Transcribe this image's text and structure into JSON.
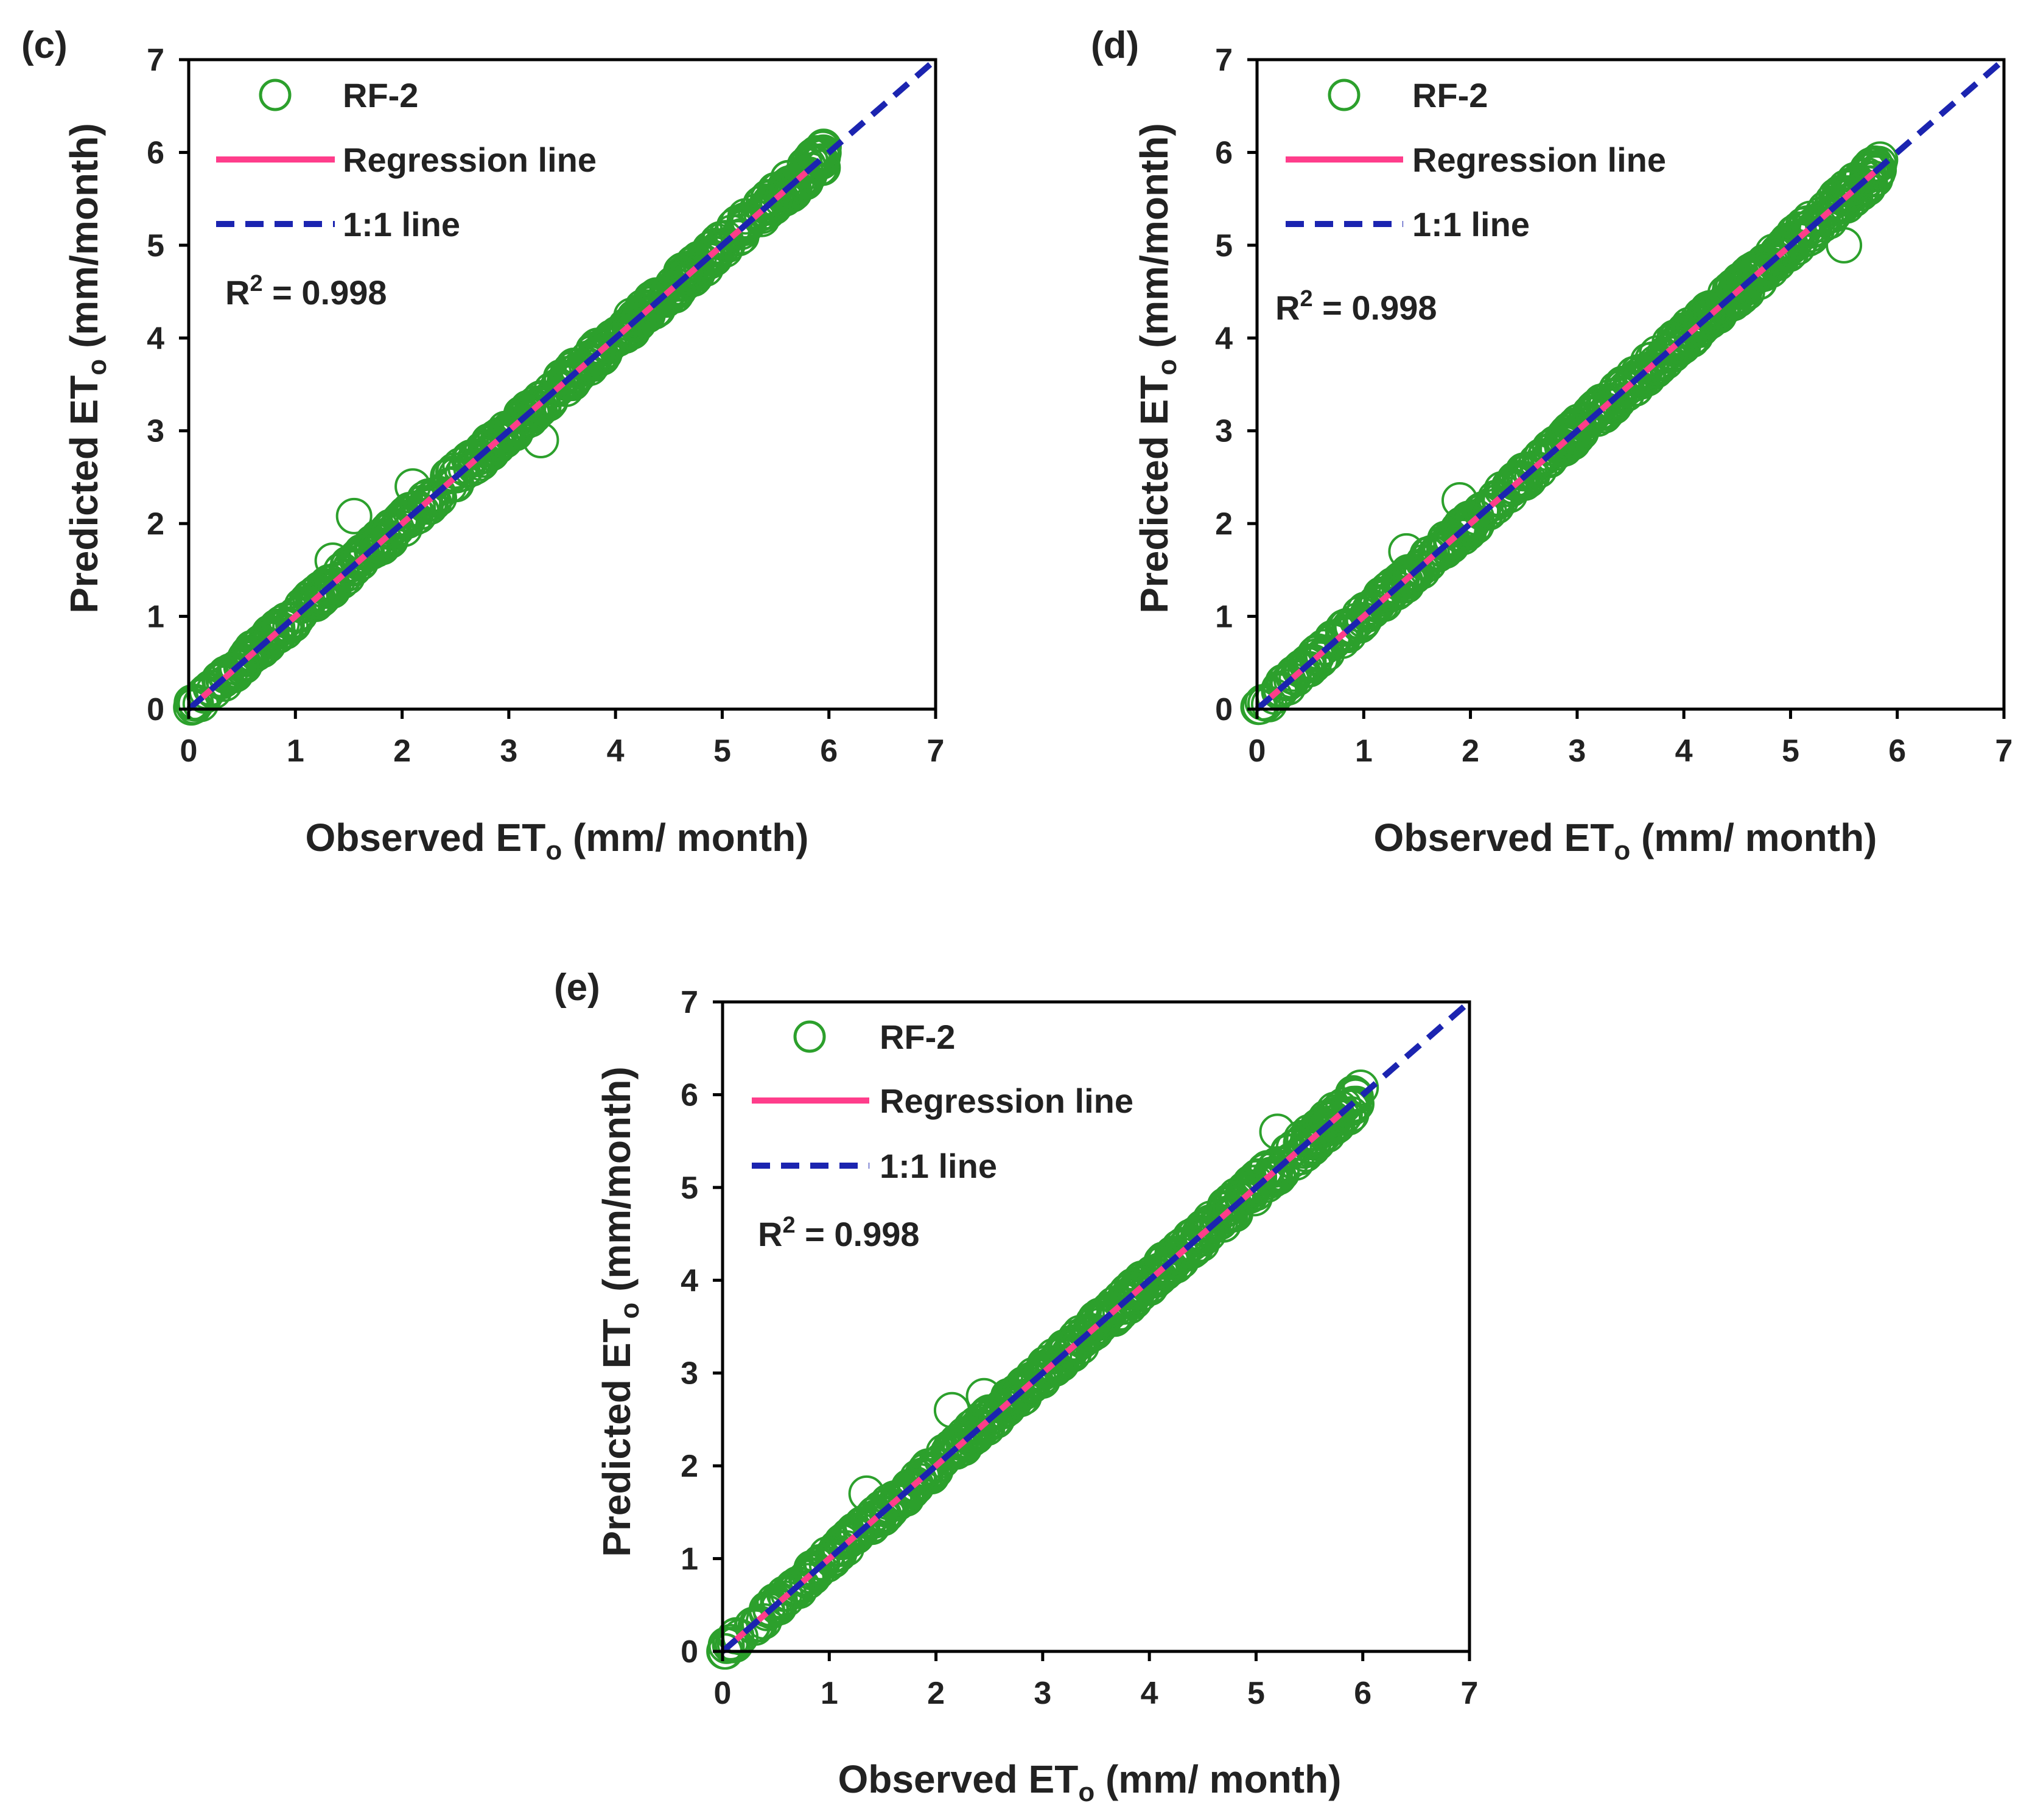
{
  "colors": {
    "points": "#2ca02c",
    "regression": "#ff3d8b",
    "one_to_one": "#1b24b0",
    "axis": "#000000",
    "text": "#222222"
  },
  "chart_data": [
    {
      "type": "scatter",
      "panel": "(c)",
      "series_name": "RF-2",
      "xlabel": "Observed ET",
      "xlabel_sub": "o",
      "xlabel_tail": " (mm/ month)",
      "ylabel": "Predicted ET",
      "ylabel_sub": "o",
      "ylabel_tail": " (mm/month)",
      "xlim": [
        0,
        7
      ],
      "ylim": [
        0,
        7
      ],
      "xticks": [
        "0",
        "1",
        "2",
        "3",
        "4",
        "5",
        "6",
        "7"
      ],
      "yticks": [
        "0",
        "1",
        "2",
        "3",
        "4",
        "5",
        "6",
        "7"
      ],
      "legend": {
        "series": "RF-2",
        "regression": "Regression line",
        "one_to_one": "1:1 line"
      },
      "r2_label": "R",
      "r2_sup": "2",
      "r2_value": " = 0.998",
      "x_range_obs": [
        0.0,
        5.95
      ],
      "outliers": [
        [
          1.55,
          2.08
        ],
        [
          1.35,
          1.6
        ],
        [
          3.3,
          2.9
        ],
        [
          2.1,
          2.4
        ]
      ],
      "regression": {
        "slope": 1.0,
        "intercept": 0.0,
        "x_end": 5.9
      },
      "one_to_one": {
        "x_end": 7.0
      }
    },
    {
      "type": "scatter",
      "panel": "(d)",
      "series_name": "RF-2",
      "xlabel": "Observed ET",
      "xlabel_sub": "o",
      "xlabel_tail": " (mm/ month)",
      "ylabel": "Predicted ET",
      "ylabel_sub": "o",
      "ylabel_tail": " (mm/month)",
      "xlim": [
        0,
        7
      ],
      "ylim": [
        0,
        7
      ],
      "xticks": [
        "0",
        "1",
        "2",
        "3",
        "4",
        "5",
        "6",
        "7"
      ],
      "yticks": [
        "0",
        "1",
        "2",
        "3",
        "4",
        "5",
        "6",
        "7"
      ],
      "legend": {
        "series": "RF-2",
        "regression": "Regression line",
        "one_to_one": "1:1 line"
      },
      "r2_label": "R",
      "r2_sup": "2",
      "r2_value": " = 0.998",
      "x_range_obs": [
        0.0,
        5.85
      ],
      "outliers": [
        [
          1.9,
          2.25
        ],
        [
          1.4,
          1.7
        ],
        [
          5.6,
          5.7
        ],
        [
          5.5,
          5.0
        ]
      ],
      "regression": {
        "slope": 1.0,
        "intercept": 0.0,
        "x_end": 5.8
      },
      "one_to_one": {
        "x_end": 7.0
      }
    },
    {
      "type": "scatter",
      "panel": "(e)",
      "series_name": "RF-2",
      "xlabel": "Observed ET",
      "xlabel_sub": "o",
      "xlabel_tail": " (mm/ month)",
      "ylabel": "Predicted ET",
      "ylabel_sub": "o",
      "ylabel_tail": " (mm/month)",
      "xlim": [
        0,
        7
      ],
      "ylim": [
        0,
        7
      ],
      "xticks": [
        "0",
        "1",
        "2",
        "3",
        "4",
        "5",
        "6",
        "7"
      ],
      "yticks": [
        "0",
        "1",
        "2",
        "3",
        "4",
        "5",
        "6",
        "7"
      ],
      "legend": {
        "series": "RF-2",
        "regression": "Regression line",
        "one_to_one": "1:1 line"
      },
      "r2_label": "R",
      "r2_sup": "2",
      "r2_value": " = 0.998",
      "x_range_obs": [
        0.0,
        6.0
      ],
      "outliers": [
        [
          2.15,
          2.6
        ],
        [
          1.35,
          1.7
        ],
        [
          5.2,
          5.6
        ],
        [
          2.45,
          2.75
        ]
      ],
      "regression": {
        "slope": 1.0,
        "intercept": 0.0,
        "x_end": 5.9
      },
      "one_to_one": {
        "x_end": 7.0
      }
    }
  ]
}
